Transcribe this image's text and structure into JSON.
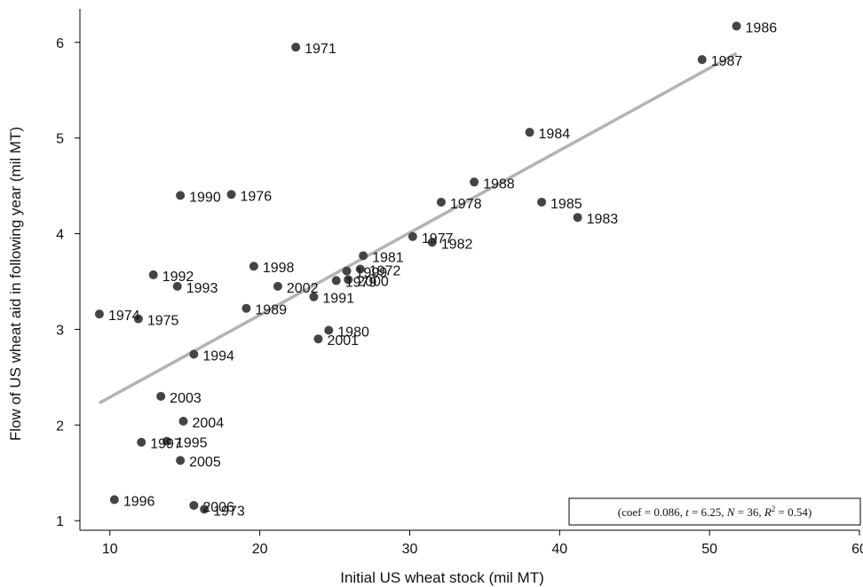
{
  "chart_data": {
    "type": "scatter",
    "title": "",
    "xlabel": "Initial US wheat stock (mil MT)",
    "ylabel": "Flow of US wheat aid in following year (mil MT)",
    "xlim": [
      8,
      60
    ],
    "ylim": [
      0.9,
      6.35
    ],
    "xticks": [
      10,
      20,
      30,
      40,
      50,
      60
    ],
    "yticks": [
      1,
      2,
      3,
      4,
      5,
      6
    ],
    "grid": false,
    "colors": {
      "points": "#444444",
      "fit_line": "#b3b3b3"
    },
    "points": [
      {
        "label": "1986",
        "x": 51.8,
        "y": 6.17
      },
      {
        "label": "1987",
        "x": 49.5,
        "y": 5.82
      },
      {
        "label": "1971",
        "x": 22.4,
        "y": 5.95
      },
      {
        "label": "1984",
        "x": 38.0,
        "y": 5.06
      },
      {
        "label": "1988",
        "x": 34.3,
        "y": 4.54
      },
      {
        "label": "1978",
        "x": 32.1,
        "y": 4.33
      },
      {
        "label": "1985",
        "x": 38.8,
        "y": 4.33
      },
      {
        "label": "1983",
        "x": 41.2,
        "y": 4.17
      },
      {
        "label": "1990",
        "x": 14.7,
        "y": 4.4
      },
      {
        "label": "1976",
        "x": 18.1,
        "y": 4.41
      },
      {
        "label": "1977",
        "x": 30.2,
        "y": 3.97
      },
      {
        "label": "1982",
        "x": 31.5,
        "y": 3.91
      },
      {
        "label": "1981",
        "x": 26.9,
        "y": 3.77
      },
      {
        "label": "1998",
        "x": 19.6,
        "y": 3.66
      },
      {
        "label": "1992",
        "x": 12.9,
        "y": 3.57
      },
      {
        "label": "1999",
        "x": 25.8,
        "y": 3.61
      },
      {
        "label": "1972",
        "x": 26.7,
        "y": 3.63
      },
      {
        "label": "1979",
        "x": 25.1,
        "y": 3.51
      },
      {
        "label": "2000",
        "x": 25.9,
        "y": 3.52
      },
      {
        "label": "2002",
        "x": 21.2,
        "y": 3.45
      },
      {
        "label": "1993",
        "x": 14.5,
        "y": 3.45
      },
      {
        "label": "1991",
        "x": 23.6,
        "y": 3.34
      },
      {
        "label": "1989",
        "x": 19.1,
        "y": 3.22
      },
      {
        "label": "1974",
        "x": 9.3,
        "y": 3.16
      },
      {
        "label": "1975",
        "x": 11.9,
        "y": 3.11
      },
      {
        "label": "1980",
        "x": 24.6,
        "y": 2.99
      },
      {
        "label": "2001",
        "x": 23.9,
        "y": 2.9
      },
      {
        "label": "1994",
        "x": 15.6,
        "y": 2.74
      },
      {
        "label": "2003",
        "x": 13.4,
        "y": 2.3
      },
      {
        "label": "2004",
        "x": 14.9,
        "y": 2.04
      },
      {
        "label": "1997",
        "x": 12.1,
        "y": 1.82
      },
      {
        "label": "1995",
        "x": 13.8,
        "y": 1.83
      },
      {
        "label": "2005",
        "x": 14.7,
        "y": 1.63
      },
      {
        "label": "1996",
        "x": 10.3,
        "y": 1.22
      },
      {
        "label": "2006",
        "x": 15.6,
        "y": 1.16
      },
      {
        "label": "1973",
        "x": 16.3,
        "y": 1.12
      }
    ],
    "fit_line": {
      "x1": 9.3,
      "x2": 51.8,
      "intercept": 1.43,
      "slope": 0.086
    },
    "annotation": {
      "coef": "0.086",
      "t": "6.25",
      "N": "36",
      "R2": "0.54"
    }
  }
}
